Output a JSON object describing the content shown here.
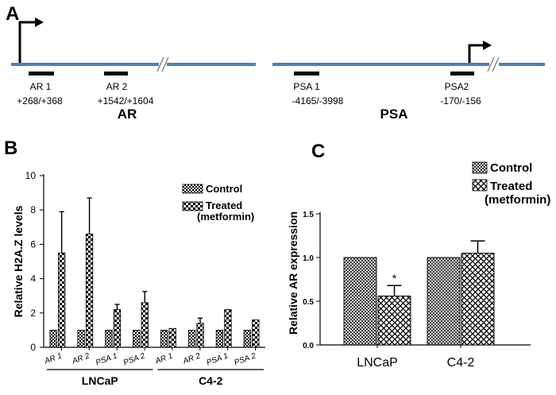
{
  "panel_labels": {
    "a": "A",
    "b": "B",
    "c": "C"
  },
  "colors": {
    "gene_line": "#4a7fc0",
    "bar_stroke": "#000000",
    "background": "#ffffff"
  },
  "diagram": {
    "ar_gene_label": "AR",
    "psa_gene_label": "PSA",
    "regions": [
      {
        "name": "AR 1",
        "coords": "+268/+368"
      },
      {
        "name": "AR 2",
        "coords": "+1542/+1604"
      },
      {
        "name": "PSA 1",
        "coords": "-4165/-3998"
      },
      {
        "name": "PSA2",
        "coords": "-170/-156"
      }
    ]
  },
  "chart_data": [
    {
      "id": "B",
      "type": "bar",
      "ylabel": "Relative H2A.Z levels",
      "ylim": [
        0,
        10
      ],
      "yticks": [
        0,
        2,
        4,
        6,
        8,
        10
      ],
      "categories": [
        "AR 1",
        "AR 2",
        "PSA 1",
        "PSA 2",
        "AR 1",
        "AR 2",
        "PSA 1",
        "PSA 2"
      ],
      "groups": [
        {
          "name": "LNCaP",
          "categories": [
            0,
            1,
            2,
            3
          ]
        },
        {
          "name": "C4-2",
          "categories": [
            4,
            5,
            6,
            7
          ]
        }
      ],
      "series": [
        {
          "name": "Control",
          "values": [
            1.0,
            1.0,
            1.0,
            1.0,
            1.0,
            1.0,
            1.0,
            1.0
          ],
          "errors": [
            0,
            0,
            0,
            0,
            0,
            0,
            0,
            0
          ]
        },
        {
          "name": "Treated",
          "name_line2": "(metformin)",
          "values": [
            5.5,
            6.6,
            2.2,
            2.6,
            1.1,
            1.4,
            2.2,
            1.6
          ],
          "errors": [
            2.4,
            2.1,
            0.3,
            0.65,
            0,
            0.3,
            0,
            0
          ]
        }
      ]
    },
    {
      "id": "C",
      "type": "bar",
      "ylabel": "Relative AR expression",
      "ylim": [
        0,
        1.5
      ],
      "yticks": [
        0.0,
        0.5,
        1.0,
        1.5
      ],
      "ytick_labels": [
        "0.0",
        "0.5",
        "1.0",
        "1.5"
      ],
      "categories": [
        "LNCaP",
        "C4-2"
      ],
      "series": [
        {
          "name": "Control",
          "values": [
            1.0,
            1.0
          ],
          "errors": [
            0,
            0
          ]
        },
        {
          "name": "Treated",
          "name_line2": "(metformin)",
          "values": [
            0.56,
            1.05
          ],
          "errors": [
            0.12,
            0.14
          ]
        }
      ],
      "annotations": [
        {
          "text": "*",
          "category": 0,
          "series": 1
        }
      ]
    }
  ]
}
